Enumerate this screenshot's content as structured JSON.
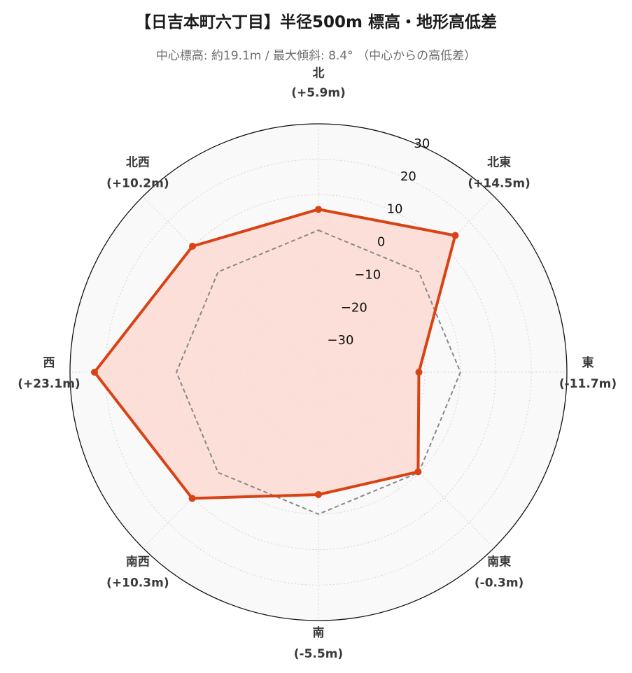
{
  "title": "【日吉本町六丁目】半径500m 標高・地形高低差",
  "subtitle": "中心標高: 約19.1m / 最大傾斜: 8.4° （中心からの高低差）",
  "colors": {
    "series": "#d84315",
    "fill": "#fcdcd4",
    "reference": "#888888",
    "background": "#f9f9f9",
    "grid": "#d6d6d6"
  },
  "chart_data": {
    "type": "radar",
    "radial_axis": {
      "range": [
        -40,
        30
      ],
      "ticks": [
        -30,
        -20,
        -10,
        0,
        10,
        20,
        30
      ],
      "tick_labels": [
        "−30",
        "−20",
        "−10",
        "0",
        "10",
        "20",
        "30"
      ]
    },
    "grid": true,
    "directions": [
      {
        "name": "北",
        "label": "(+5.9m)",
        "value": 5.9
      },
      {
        "name": "北東",
        "label": "(+14.5m)",
        "value": 14.5
      },
      {
        "name": "東",
        "label": "(-11.7m)",
        "value": -11.7
      },
      {
        "name": "南東",
        "label": "(-0.3m)",
        "value": -0.3
      },
      {
        "name": "南",
        "label": "(-5.5m)",
        "value": -5.5
      },
      {
        "name": "南西",
        "label": "(+10.3m)",
        "value": 10.3
      },
      {
        "name": "西",
        "label": "(+23.1m)",
        "value": 23.1
      },
      {
        "name": "北西",
        "label": "(+10.2m)",
        "value": 10.2
      }
    ],
    "series": [
      {
        "values": [
          5.9,
          14.5,
          -11.7,
          -0.3,
          -5.5,
          10.3,
          23.1,
          10.2
        ]
      }
    ],
    "reference_series": {
      "values": [
        0,
        0,
        0,
        0,
        0,
        0,
        0,
        0
      ]
    }
  }
}
